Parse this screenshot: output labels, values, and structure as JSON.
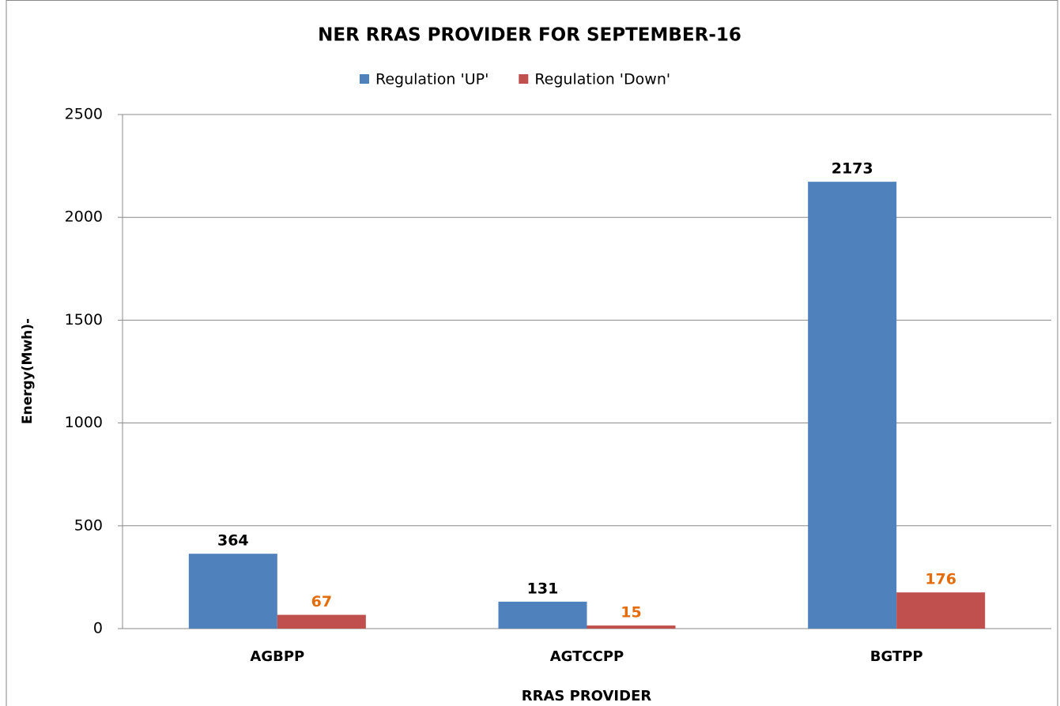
{
  "chart_data": {
    "type": "bar",
    "title": "NER RRAS PROVIDER FOR SEPTEMBER-16",
    "x_label": "RRAS PROVIDER",
    "y_label": "Energy(Mwh)-",
    "categories": [
      "AGBPP",
      "AGTCCPP",
      "BGTPP"
    ],
    "series": [
      {
        "name": "Regulation 'UP'",
        "color": "#4f81bd",
        "label_color": "#000000",
        "values": [
          364,
          131,
          2173
        ]
      },
      {
        "name": "Regulation 'Down'",
        "color": "#c0504d",
        "label_color": "#e46c0a",
        "values": [
          67,
          15,
          176
        ]
      }
    ],
    "ylim": [
      0,
      2500
    ],
    "yticks": [
      0,
      500,
      1000,
      1500,
      2000,
      2500
    ],
    "grid": true,
    "legend": "top"
  }
}
